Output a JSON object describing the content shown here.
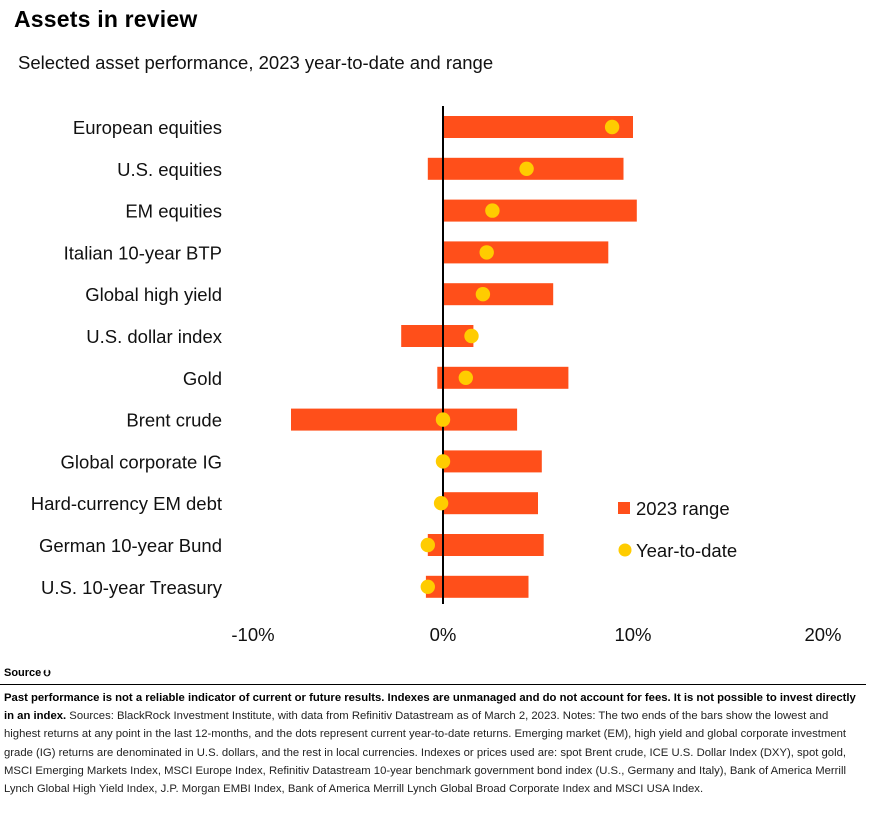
{
  "header": {
    "title": "Assets in review",
    "subtitle": "Selected asset performance, 2023 year-to-date and range"
  },
  "chart_data": {
    "type": "bar",
    "orientation": "horizontal",
    "chart_kind": "range-bars-with-dots",
    "categories": [
      "European equities",
      "U.S. equities",
      "EM equities",
      "Italian 10-year BTP",
      "Global high yield",
      "U.S. dollar index",
      "Gold",
      "Brent crude",
      "Global corporate IG",
      "Hard-currency EM debt",
      "German 10-year Bund",
      "U.S. 10-year Treasury"
    ],
    "series": [
      {
        "name": "2023 range",
        "color": "#ff4f1a",
        "low": [
          0.0,
          -0.8,
          0.0,
          0.0,
          0.0,
          -2.2,
          -0.3,
          -8.0,
          0.0,
          0.0,
          -0.8,
          -0.9
        ],
        "high": [
          10.0,
          9.5,
          10.2,
          8.7,
          5.8,
          1.6,
          6.6,
          3.9,
          5.2,
          5.0,
          5.3,
          4.5
        ]
      },
      {
        "name": "Year-to-date",
        "color": "#ffcc00",
        "values": [
          8.9,
          4.4,
          2.6,
          2.3,
          2.1,
          1.5,
          1.2,
          0.0,
          0.0,
          -0.1,
          -0.8,
          -0.8
        ]
      }
    ],
    "x_ticks": [
      "-10%",
      "0%",
      "10%",
      "20%"
    ],
    "xlim": [
      -10,
      20
    ],
    "x_tick_values": [
      -10,
      0,
      10,
      20
    ],
    "grid": false,
    "legend_position": "right"
  },
  "footer": {
    "source_label": "Source",
    "disclaimer": "Past performance is not a reliable indicator of current or future results. Indexes are unmanaged and do not account for fees. It is not possible to invest directly in an index.",
    "notes": "Sources: BlackRock Investment Institute, with data from Refinitiv Datastream as of March 2, 2023. Notes: The two ends of the bars show the lowest and highest returns at any point in the last 12-months, and the dots represent current year-to-date returns. Emerging market (EM), high yield and global corporate investment grade (IG) returns are denominated in U.S. dollars, and the rest in local currencies. Indexes or prices used are: spot Brent crude, ICE U.S. Dollar Index (DXY), spot gold, MSCI Emerging Markets Index, MSCI Europe Index, Refinitiv Datastream 10-year benchmark government bond index (U.S., Germany and Italy), Bank of America Merrill Lynch Global High Yield Index, J.P. Morgan EMBI Index, Bank of America Merrill Lynch Global Broad Corporate Index and MSCI USA Index."
  }
}
